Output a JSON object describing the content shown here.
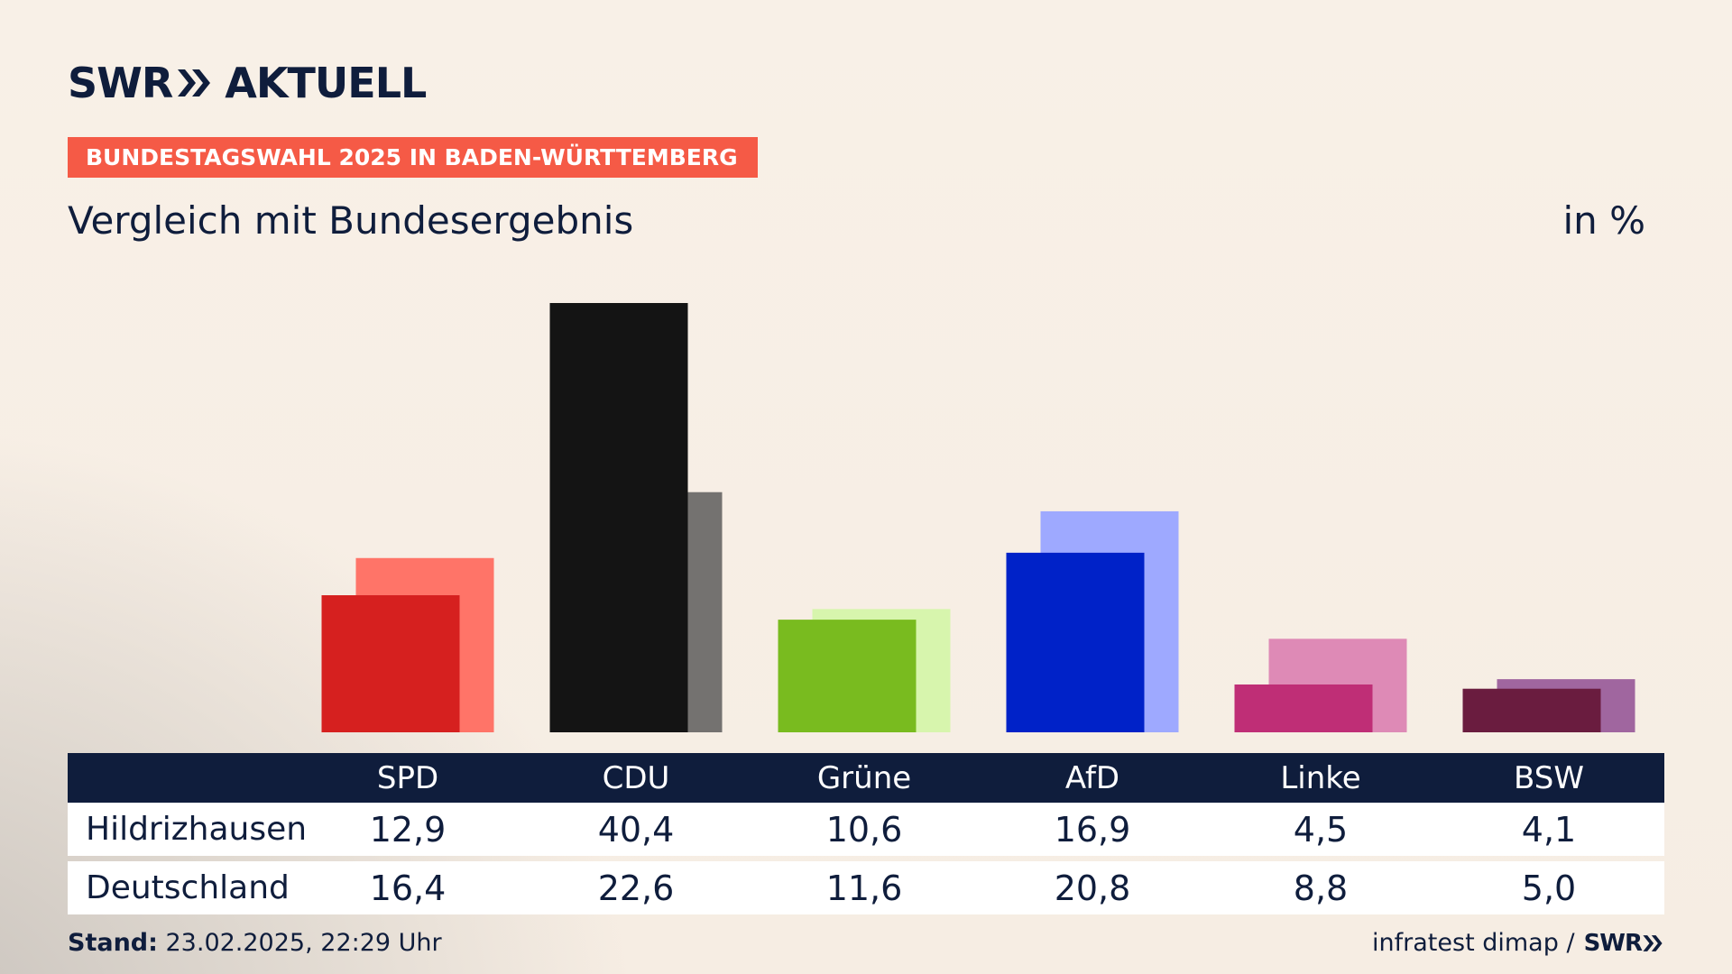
{
  "header": {
    "logo_text_left": "SWR",
    "logo_text_right": "AKTUELL",
    "tag": "BUNDESTAGSWAHL 2025 IN BADEN-WÜRTTEMBERG",
    "subtitle": "Vergleich mit Bundesergebnis",
    "unit": "in %"
  },
  "colors": {
    "navy": "#0f1d3c",
    "tag_red": "#f55a46"
  },
  "chart_data": {
    "type": "bar",
    "categories": [
      "SPD",
      "CDU",
      "Grüne",
      "AfD",
      "Linke",
      "BSW"
    ],
    "series": [
      {
        "name": "Hildrizhausen",
        "values": [
          12.9,
          40.4,
          10.6,
          16.9,
          4.5,
          4.1
        ],
        "colors": [
          "#d6201f",
          "#141414",
          "#79bb1f",
          "#0022c8",
          "#bf2e76",
          "#6a1c3f"
        ]
      },
      {
        "name": "Deutschland",
        "values": [
          16.4,
          22.6,
          11.6,
          20.8,
          8.8,
          5.0
        ],
        "colors": [
          "#ff7468",
          "#747270",
          "#d7f5ad",
          "#9ea9ff",
          "#de8ab6",
          "#a0669f"
        ]
      }
    ],
    "ylim": [
      0,
      40.4
    ],
    "grid": false
  },
  "table": {
    "rows": [
      {
        "label": "Hildrizhausen",
        "values": [
          "12,9",
          "40,4",
          "10,6",
          "16,9",
          "4,5",
          "4,1"
        ]
      },
      {
        "label": "Deutschland",
        "values": [
          "16,4",
          "22,6",
          "11,6",
          "20,8",
          "8,8",
          "5,0"
        ]
      }
    ]
  },
  "footer": {
    "stand_label": "Stand:",
    "stand_value": " 23.02.2025, 22:29 Uhr",
    "source": "infratest dimap /",
    "source_brand": "SWR"
  }
}
